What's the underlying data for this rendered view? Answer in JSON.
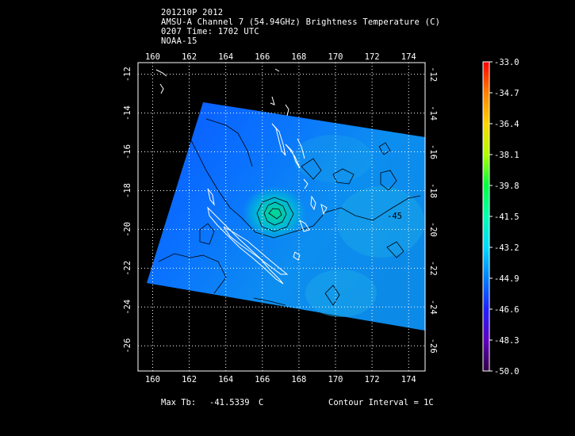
{
  "header": {
    "line1": "201210P 2012",
    "line2": "AMSU-A Channel 7 (54.94GHz) Brightness Temperature (C)",
    "line3": "0207 Time: 1702 UTC",
    "line4": "NOAA-15"
  },
  "map": {
    "lon_min": 159.2,
    "lon_max": 174.9,
    "lat_min": -27.3,
    "lat_max": -11.4,
    "lon_ticks": [
      "160",
      "162",
      "164",
      "166",
      "168",
      "170",
      "172",
      "174"
    ],
    "lat_ticks": [
      "-12",
      "-14",
      "-16",
      "-18",
      "-20",
      "-22",
      "-24",
      "-26"
    ],
    "grid": "dotted",
    "contour_label": "-45"
  },
  "colorbar": {
    "labels": [
      "-33.0",
      "-34.7",
      "-36.4",
      "-38.1",
      "-39.8",
      "-41.5",
      "-43.2",
      "-44.9",
      "-46.6",
      "-48.3",
      "-50.0"
    ],
    "colors": [
      "#ff0000",
      "#ff8000",
      "#ffd400",
      "#b0ff00",
      "#00ff40",
      "#00ffb0",
      "#00d8ff",
      "#0080ff",
      "#2020ff",
      "#6000c0",
      "#300040"
    ]
  },
  "footer": {
    "max_tb_label": "Max Tb:",
    "max_tb_value": "-41.5339",
    "max_tb_unit": "C",
    "contour_interval": "Contour Interval = 1C"
  }
}
